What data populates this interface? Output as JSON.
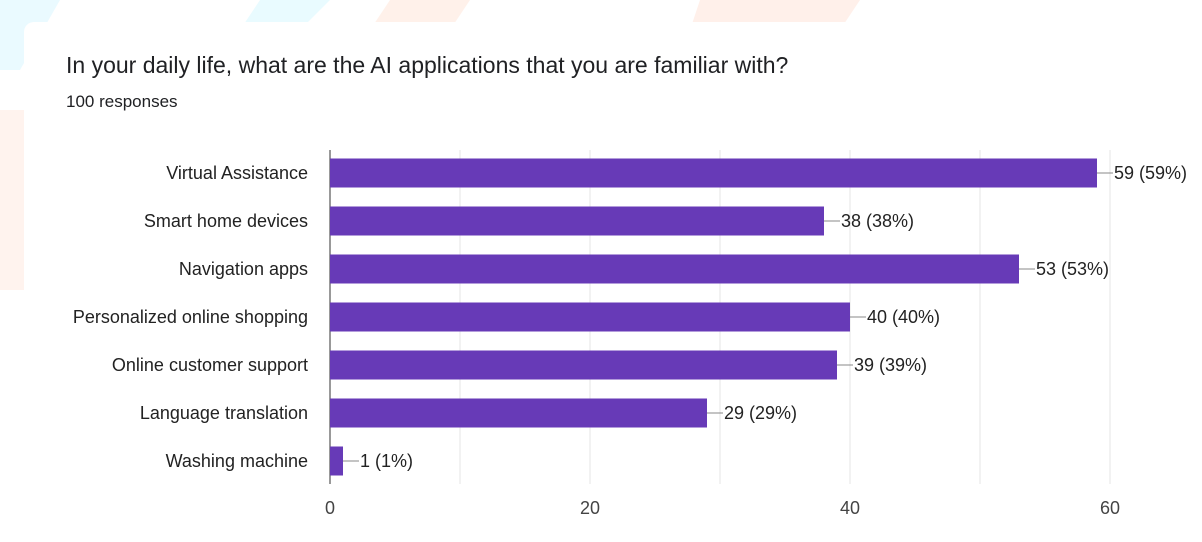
{
  "header": {
    "title": "In your daily life, what are the AI applications that you are familiar with?",
    "subtitle": "100 responses"
  },
  "colors": {
    "bar": "#673AB7",
    "grid": "#e4e4e4",
    "axis": "#333333",
    "leader": "#888888"
  },
  "chart_data": {
    "type": "bar",
    "orientation": "horizontal",
    "title": "In your daily life, what are the AI applications that you are familiar with?",
    "subtitle": "100 responses",
    "categories": [
      "Virtual Assistance",
      "Smart home devices",
      "Navigation apps",
      "Personalized online shopping",
      "Online customer support",
      "Language translation",
      "Washing machine"
    ],
    "values": [
      59,
      38,
      53,
      40,
      39,
      29,
      1
    ],
    "data_labels": [
      "59 (59%)",
      "38 (38%)",
      "53 (53%)",
      "40 (40%)",
      "39 (39%)",
      "29 (29%)",
      "1 (1%)"
    ],
    "xlim": [
      0,
      60
    ],
    "xticks": [
      0,
      20,
      40,
      60
    ],
    "xlabel": "",
    "ylabel": "",
    "grid": true,
    "legend": "none"
  }
}
